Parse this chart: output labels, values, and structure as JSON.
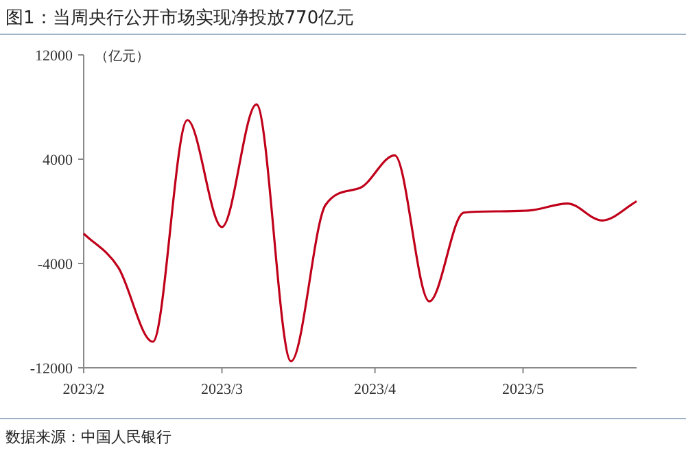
{
  "chart_data": {
    "type": "line",
    "title": "图1：当周央行公开市场实现净投放770亿元",
    "ylabel": "（亿元）",
    "annotations": [
      "数据来源：中国人民银行"
    ],
    "x": [
      "2023-02-01",
      "2023-02-08",
      "2023-02-15",
      "2023-02-22",
      "2023-03-01",
      "2023-03-08",
      "2023-03-15",
      "2023-03-22",
      "2023-03-29",
      "2023-04-05",
      "2023-04-12",
      "2023-04-19",
      "2023-04-26",
      "2023-05-03",
      "2023-05-10",
      "2023-05-17",
      "2023-05-24"
    ],
    "series": [
      {
        "color": "#c0001a",
        "values": [
          -1700,
          -4300,
          -10000,
          7000,
          -1200,
          8200,
          -11500,
          500,
          1800,
          4300,
          -6900,
          -100,
          0,
          100,
          600,
          -700,
          770
        ]
      }
    ],
    "xlim": [
      "2023-02-01",
      "2023-05-24"
    ],
    "xticks": [
      {
        "value": "2023-02-01",
        "label": "2023/2"
      },
      {
        "value": "2023-03-01",
        "label": "2023/3"
      },
      {
        "value": "2023-04-01",
        "label": "2023/4"
      },
      {
        "value": "2023-05-01",
        "label": "2023/5"
      }
    ],
    "ylim": [
      -12000,
      12000
    ],
    "yticks": [
      -12000,
      -4000,
      4000,
      12000
    ]
  }
}
